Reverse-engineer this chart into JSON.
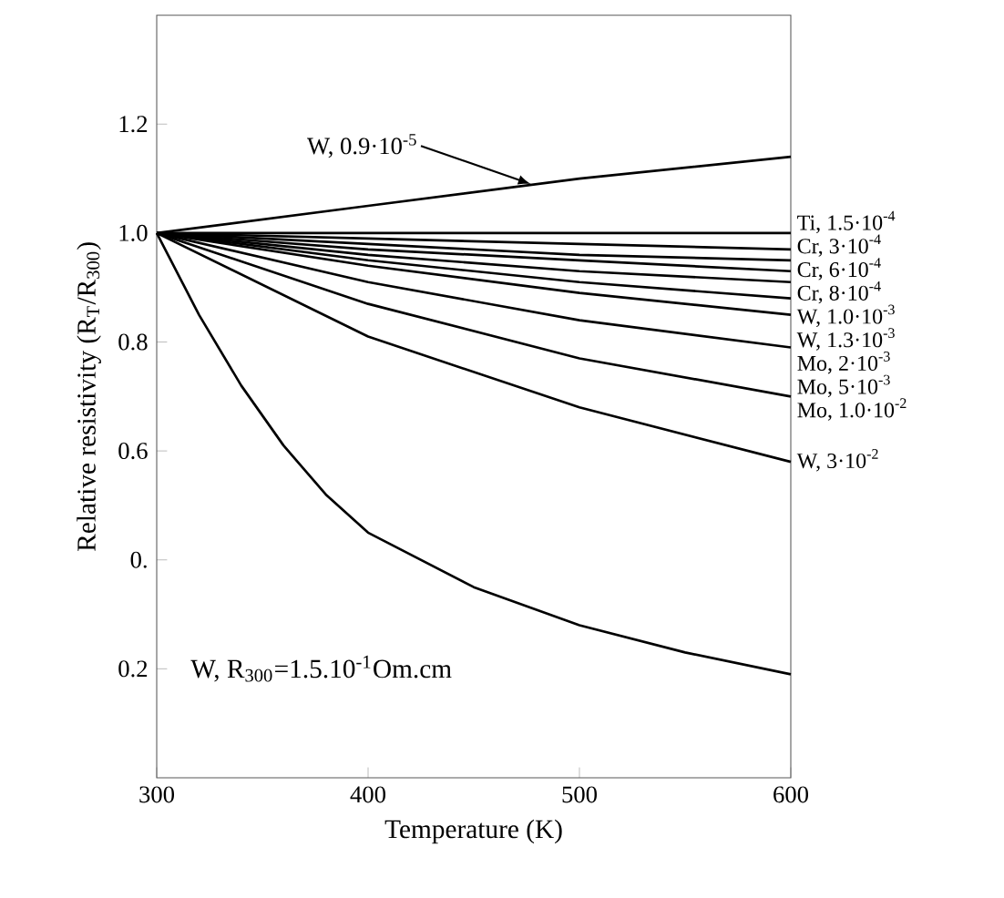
{
  "chart_data": {
    "type": "line",
    "xlabel": "Temperature (K)",
    "ylabel": "Relative resistivity (R$_{T}$/R$_{300}$)",
    "xlim": [
      300,
      600
    ],
    "ylim": [
      0,
      1.4
    ],
    "xticks": [
      300,
      400,
      500,
      600
    ],
    "yticks": [
      {
        "value": 0.2,
        "label": "0.2"
      },
      {
        "value": 0.4,
        "label": "0."
      },
      {
        "value": 0.6,
        "label": "0.6"
      },
      {
        "value": 0.8,
        "label": "0.8"
      },
      {
        "value": 1.0,
        "label": "1.0"
      },
      {
        "value": 1.2,
        "label": "1.2"
      }
    ],
    "annotations": [
      {
        "text": "W, 0.9·10$^{-5}$",
        "x": 477,
        "y": 1.09
      },
      "W, R$_{300}$=1.5.10$^{-1}$Om.cm"
    ],
    "series": [
      {
        "color": "#000000",
        "x": [
          300,
          400,
          500,
          600
        ],
        "values": [
          1.0,
          1.05,
          1.1,
          1.14
        ]
      },
      {
        "name": "Ti, 1.5·10$^{-4}$",
        "color": "#000000",
        "x": [
          300,
          400,
          500,
          600
        ],
        "values": [
          1.0,
          1.0,
          1.0,
          1.0
        ]
      },
      {
        "name": "Cr, 3·10$^{-4}$",
        "color": "#000000",
        "x": [
          300,
          400,
          500,
          600
        ],
        "values": [
          1.0,
          0.99,
          0.98,
          0.97
        ]
      },
      {
        "name": "Cr, 6·10$^{-4}$",
        "color": "#000000",
        "x": [
          300,
          400,
          500,
          600
        ],
        "values": [
          1.0,
          0.98,
          0.96,
          0.95
        ]
      },
      {
        "name": "Cr, 8·10$^{-4}$",
        "color": "#000000",
        "x": [
          300,
          400,
          500,
          600
        ],
        "values": [
          1.0,
          0.97,
          0.95,
          0.93
        ]
      },
      {
        "name": "W, 1.0·10$^{-3}$",
        "color": "#000000",
        "x": [
          300,
          400,
          500,
          600
        ],
        "values": [
          1.0,
          0.96,
          0.93,
          0.91
        ]
      },
      {
        "name": "W, 1.3·10$^{-3}$",
        "color": "#000000",
        "x": [
          300,
          400,
          500,
          600
        ],
        "values": [
          1.0,
          0.95,
          0.91,
          0.88
        ]
      },
      {
        "name": "Mo, 2·10$^{-3}$",
        "color": "#000000",
        "x": [
          300,
          400,
          500,
          600
        ],
        "values": [
          1.0,
          0.94,
          0.89,
          0.85
        ]
      },
      {
        "name": "Mo, 5·10$^{-3}$",
        "color": "#000000",
        "x": [
          300,
          400,
          500,
          600
        ],
        "values": [
          1.0,
          0.91,
          0.84,
          0.79
        ]
      },
      {
        "name": "Mo, 1.0·10$^{-2}$",
        "color": "#000000",
        "x": [
          300,
          400,
          500,
          600
        ],
        "values": [
          1.0,
          0.87,
          0.77,
          0.7
        ]
      },
      {
        "name": "W, 3·10$^{-2}$",
        "color": "#000000",
        "x": [
          300,
          400,
          500,
          600
        ],
        "values": [
          1.0,
          0.81,
          0.68,
          0.58
        ]
      },
      {
        "color": "#000000",
        "x": [
          300,
          320,
          340,
          360,
          380,
          400,
          450,
          500,
          550,
          600
        ],
        "values": [
          1.0,
          0.85,
          0.72,
          0.61,
          0.52,
          0.45,
          0.35,
          0.28,
          0.23,
          0.19
        ]
      }
    ]
  }
}
